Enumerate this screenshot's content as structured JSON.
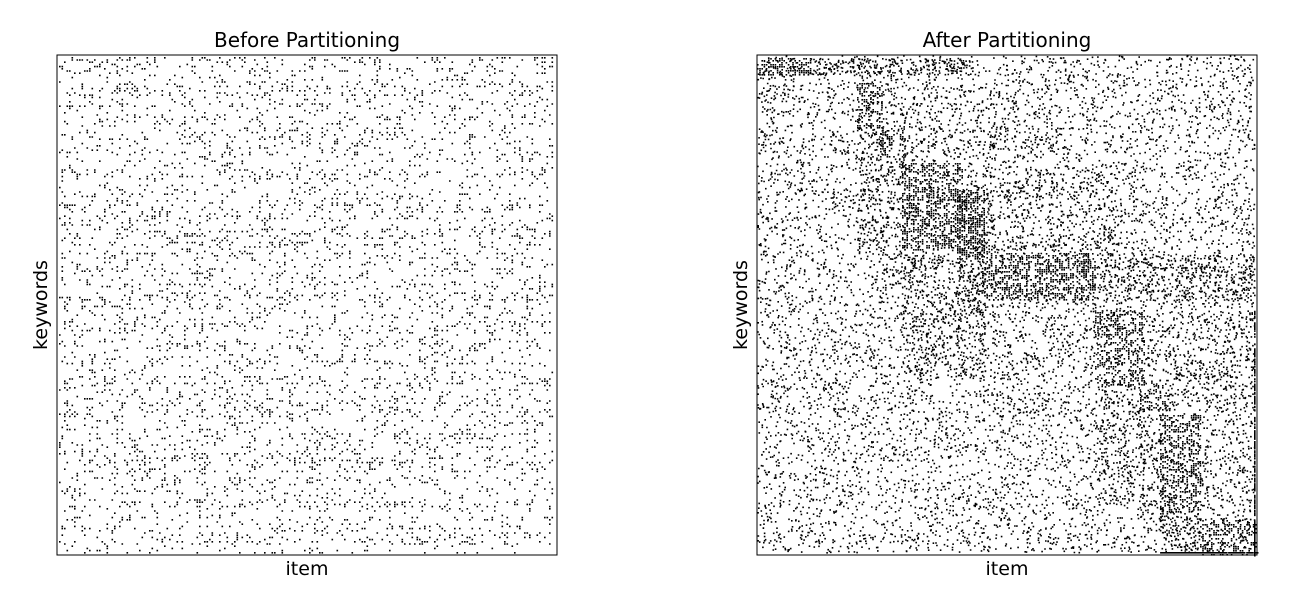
{
  "chart_data": [
    {
      "type": "spy",
      "title": "Before Partitioning",
      "x_label": "item",
      "y_label": "keywords",
      "pattern": "scattered"
    },
    {
      "type": "spy",
      "title": "After Partitioning",
      "x_label": "item",
      "y_label": "keywords",
      "pattern": "block-diagonal"
    }
  ]
}
